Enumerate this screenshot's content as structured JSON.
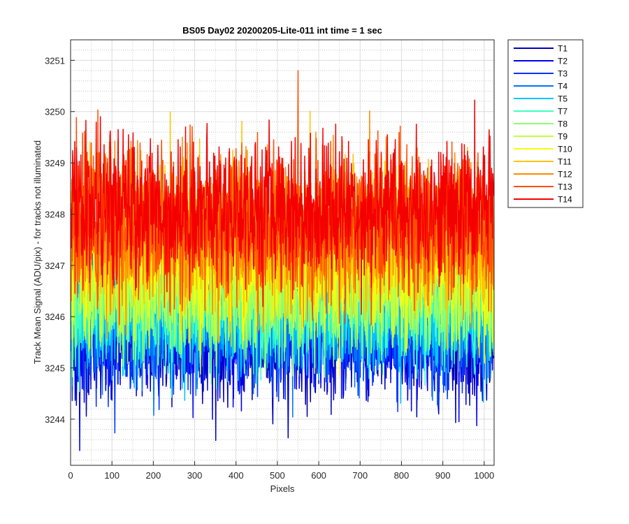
{
  "chart_data": {
    "type": "line",
    "title": "BS05 Day02 20200205-Lite-011 int time = 1 sec",
    "xlabel": "Pixels",
    "ylabel": "Track Mean Signal (ADU/pix) - for tracks not illuminated",
    "xlim": [
      0,
      1024
    ],
    "ylim": [
      3243.1,
      3251.4
    ],
    "xticks": [
      0,
      100,
      200,
      300,
      400,
      500,
      600,
      700,
      800,
      900,
      1000
    ],
    "yticks": [
      3244,
      3245,
      3246,
      3247,
      3248,
      3249,
      3250,
      3251
    ],
    "grid": "major and minor",
    "legend_position": "outside-top-right",
    "n_points_per_series": 1024,
    "series": [
      {
        "name": "T1",
        "color": "#0000b8",
        "mean": 3245.5,
        "spread": 0.55
      },
      {
        "name": "T2",
        "color": "#0000f0",
        "mean": 3245.6,
        "spread": 0.55
      },
      {
        "name": "T3",
        "color": "#0033ff",
        "mean": 3245.8,
        "spread": 0.55
      },
      {
        "name": "T4",
        "color": "#0075ff",
        "mean": 3245.9,
        "spread": 0.55
      },
      {
        "name": "T5",
        "color": "#00c6ff",
        "mean": 3246.0,
        "spread": 0.55
      },
      {
        "name": "T7",
        "color": "#40ffbf",
        "mean": 3246.3,
        "spread": 0.6
      },
      {
        "name": "T8",
        "color": "#8fff70",
        "mean": 3246.5,
        "spread": 0.6
      },
      {
        "name": "T9",
        "color": "#c2ff3d",
        "mean": 3246.8,
        "spread": 0.65
      },
      {
        "name": "T10",
        "color": "#f5ff0a",
        "mean": 3247.2,
        "spread": 0.7
      },
      {
        "name": "T11",
        "color": "#ffc400",
        "mean": 3247.5,
        "spread": 0.7
      },
      {
        "name": "T12",
        "color": "#ff8a00",
        "mean": 3247.7,
        "spread": 0.7
      },
      {
        "name": "T13",
        "color": "#ff4e00",
        "mean": 3247.8,
        "spread": 0.7
      },
      {
        "name": "T14",
        "color": "#f50000",
        "mean": 3248.1,
        "spread": 0.7
      }
    ]
  }
}
